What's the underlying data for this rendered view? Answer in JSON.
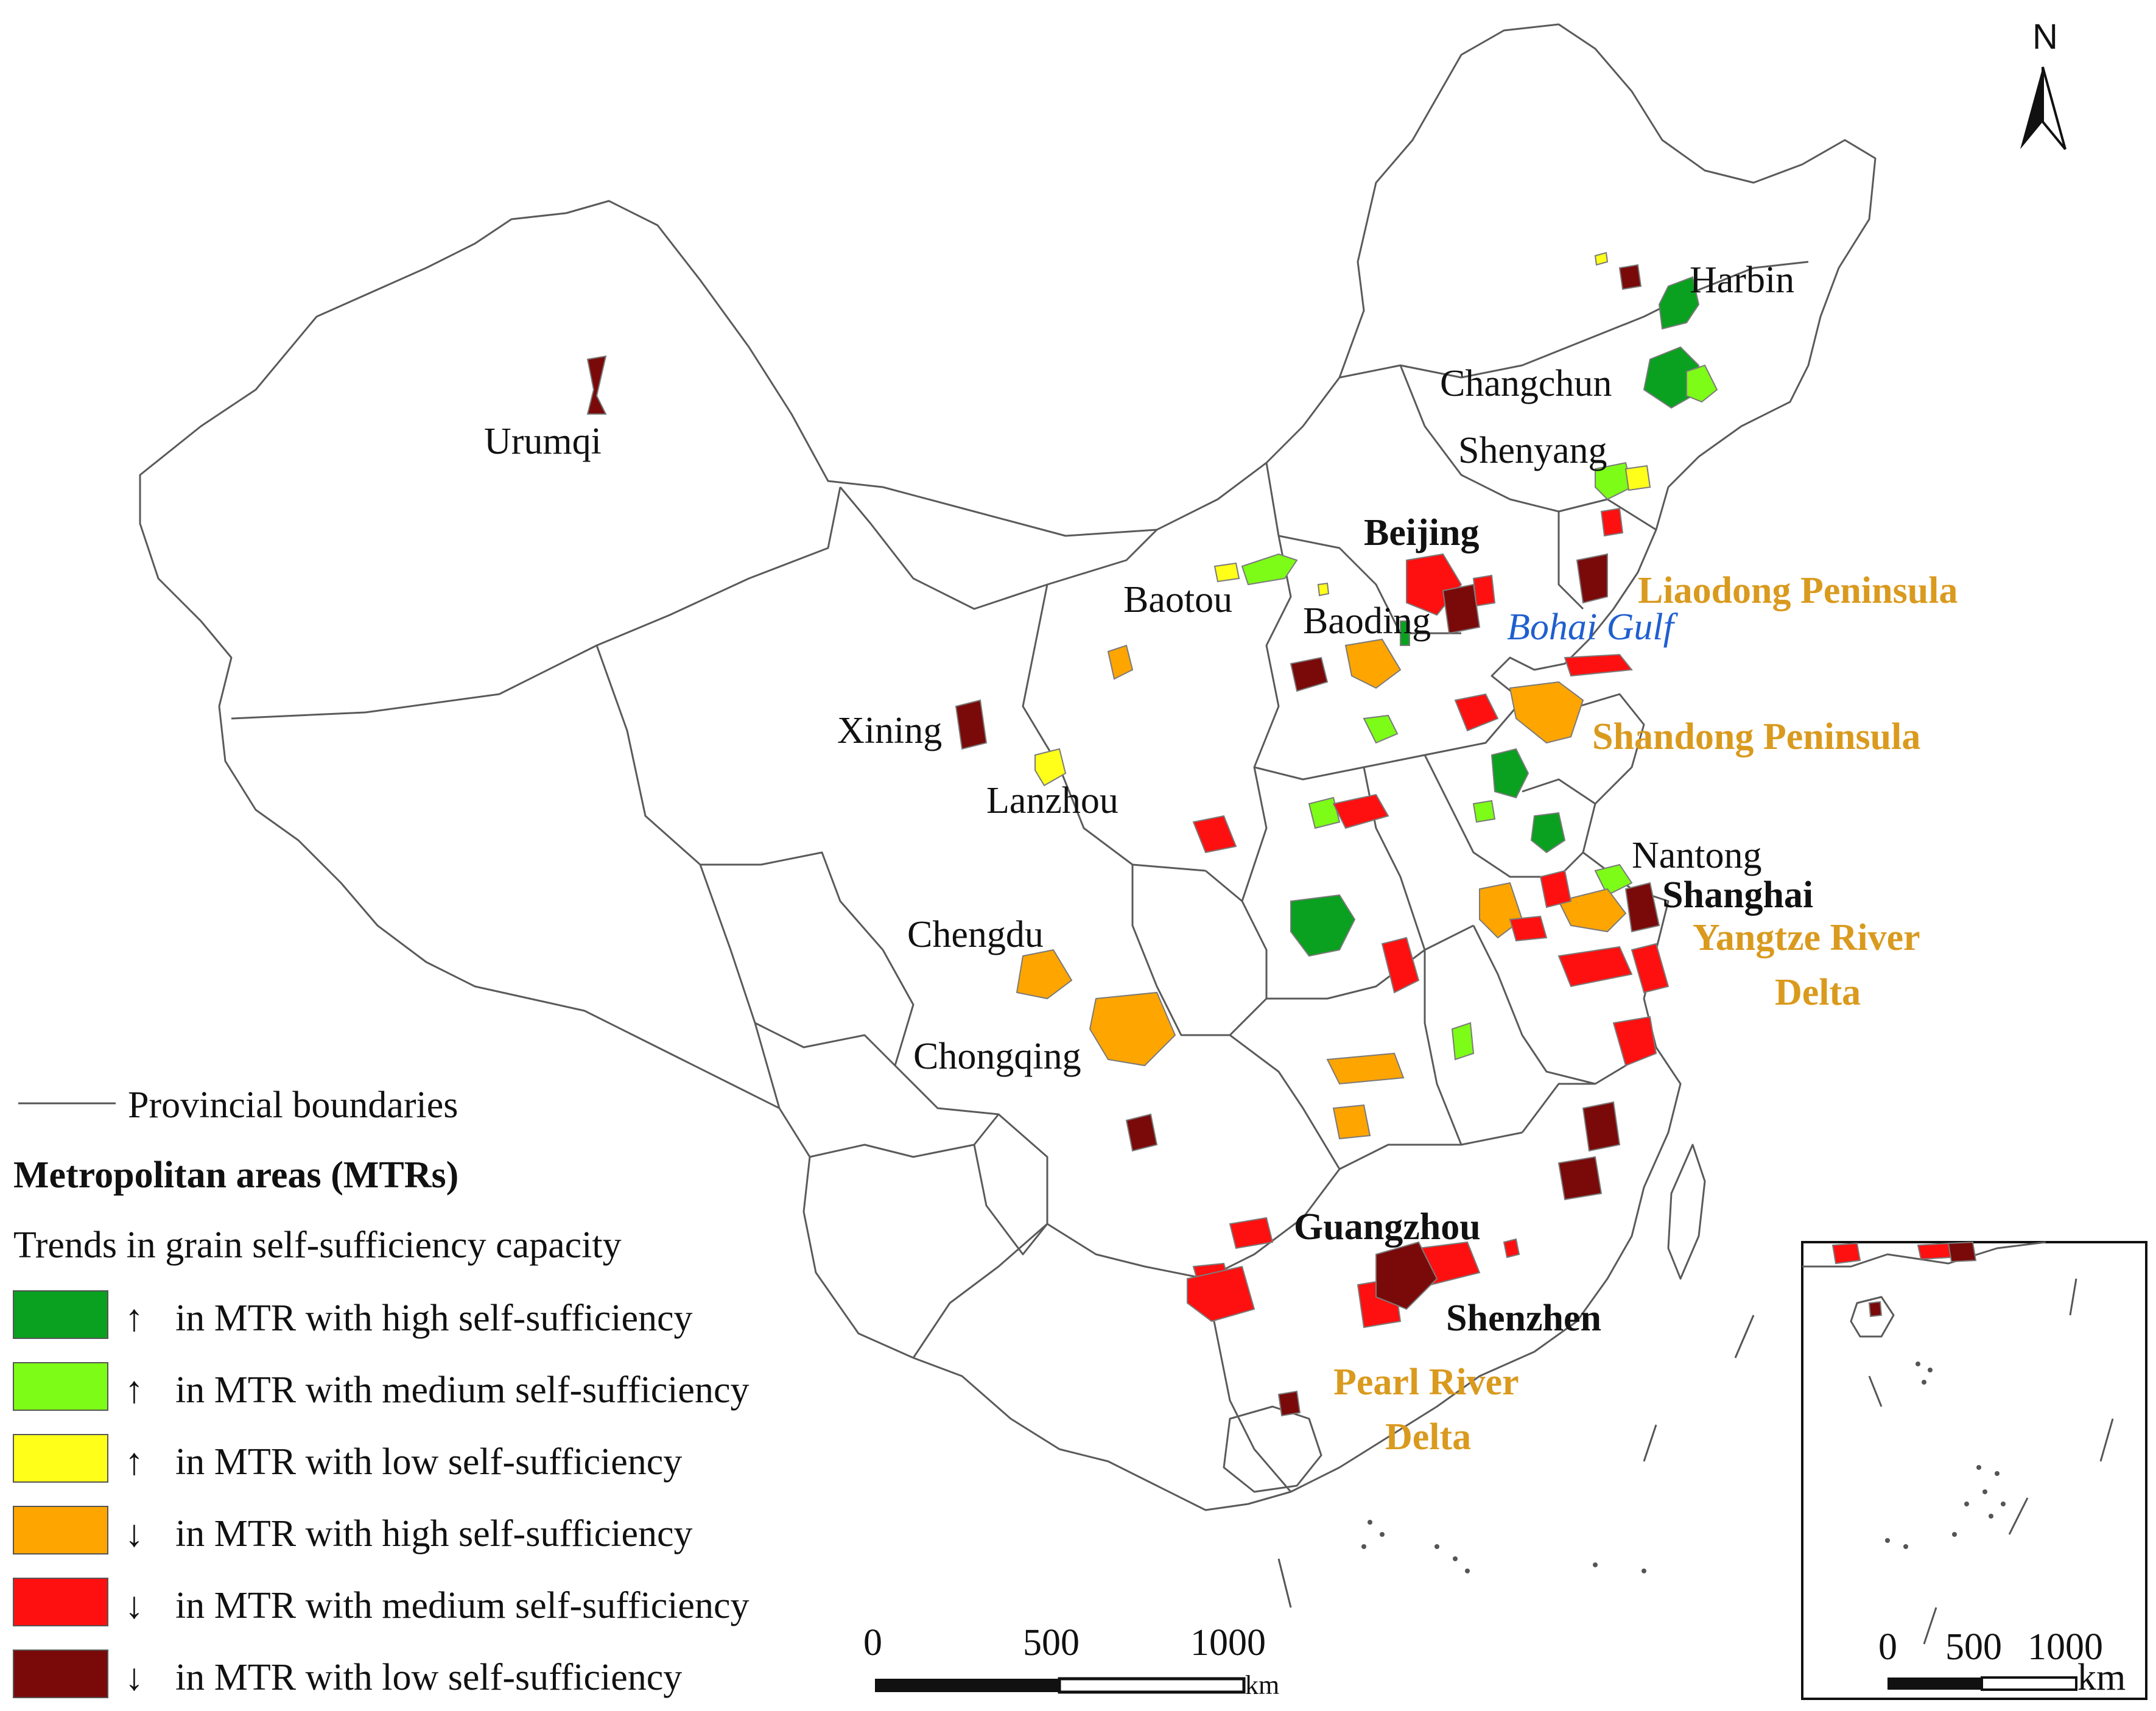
{
  "north_label": "N",
  "cities": [
    {
      "name": "Urumqi",
      "style": "normal"
    },
    {
      "name": "Harbin",
      "style": "normal"
    },
    {
      "name": "Changchun",
      "style": "normal"
    },
    {
      "name": "Shenyang",
      "style": "normal"
    },
    {
      "name": "Beijing",
      "style": "bold"
    },
    {
      "name": "Baotou",
      "style": "normal"
    },
    {
      "name": "Baoding",
      "style": "normal"
    },
    {
      "name": "Xining",
      "style": "normal"
    },
    {
      "name": "Lanzhou",
      "style": "normal"
    },
    {
      "name": "Nantong",
      "style": "normal"
    },
    {
      "name": "Shanghai",
      "style": "bold"
    },
    {
      "name": "Chengdu",
      "style": "normal"
    },
    {
      "name": "Chongqing",
      "style": "normal"
    },
    {
      "name": "Guangzhou",
      "style": "bold"
    },
    {
      "name": "Shenzhen",
      "style": "bold"
    }
  ],
  "regions": [
    {
      "name": "Liaodong Peninsula"
    },
    {
      "name": "Shandong Peninsula"
    },
    {
      "name": "Yangtze River",
      "line2": "Delta"
    },
    {
      "name": "Pearl River",
      "line2": "Delta"
    }
  ],
  "water": {
    "name": "Bohai Gulf"
  },
  "legend": {
    "boundary_label": "Provincial boundaries",
    "title": "Metropolitan areas (MTRs)",
    "subtitle": "Trends in grain self-sufficiency capacity",
    "items": [
      {
        "color": "#0aa020",
        "arrow": "↑",
        "label": "in MTR with high self-sufficiency"
      },
      {
        "color": "#7cfc16",
        "arrow": "↑",
        "label": "in MTR with medium self-sufficiency"
      },
      {
        "color": "#ffff1a",
        "arrow": "↑",
        "label": "in MTR with low self-sufficiency"
      },
      {
        "color": "#ffa500",
        "arrow": "↓",
        "label": "in MTR with high self-sufficiency"
      },
      {
        "color": "#ff1010",
        "arrow": "↓",
        "label": "in MTR with medium self-sufficiency"
      },
      {
        "color": "#7a0a0a",
        "arrow": "↓",
        "label": "in MTR with low self-sufficiency"
      }
    ]
  },
  "scale": {
    "ticks": [
      "0",
      "500",
      "1000"
    ],
    "unit": "km"
  },
  "inset_scale": {
    "ticks": [
      "0",
      "500",
      "1000"
    ],
    "unit": "km"
  }
}
